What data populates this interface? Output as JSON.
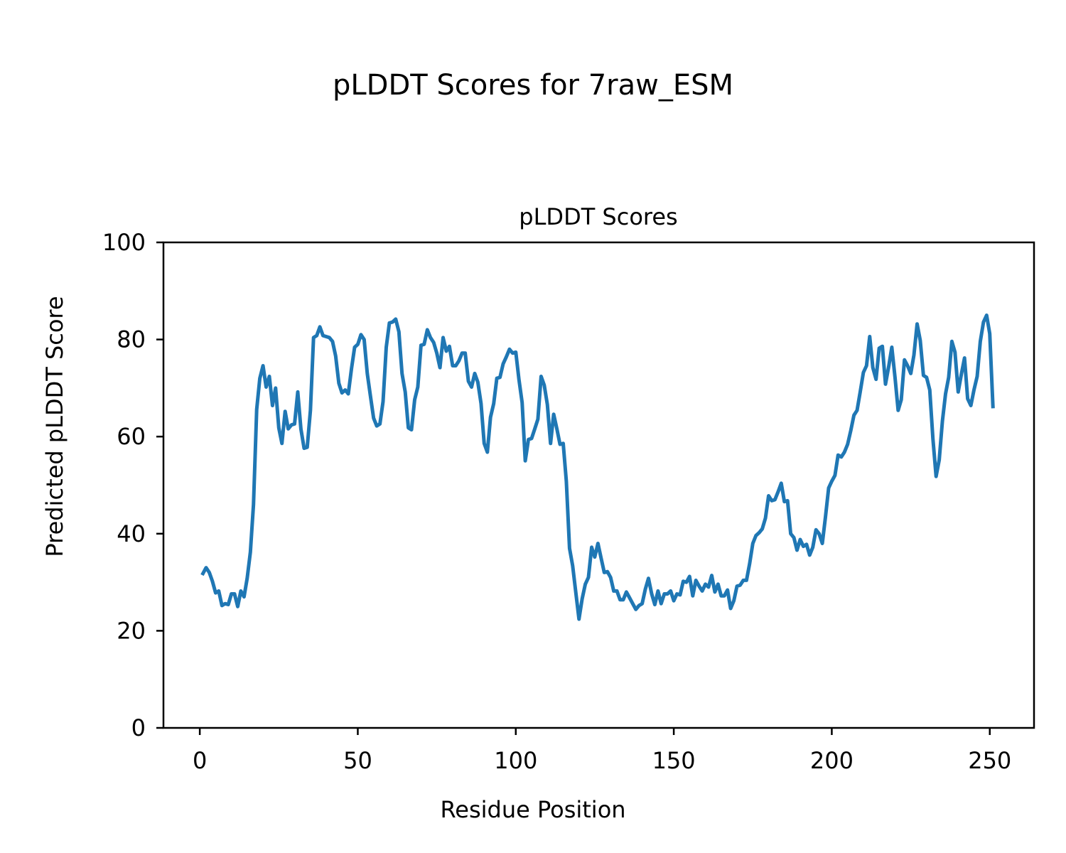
{
  "figure_title": "pLDDT Scores for 7raw_ESM",
  "chart_data": {
    "type": "line",
    "title": "pLDDT Scores",
    "xlabel": "Residue Position",
    "ylabel": "Predicted pLDDT Score",
    "xlim": [
      -11.5,
      264
    ],
    "ylim": [
      0,
      100
    ],
    "xticks": [
      0,
      50,
      100,
      150,
      200,
      250
    ],
    "yticks": [
      0,
      20,
      40,
      60,
      80,
      100
    ],
    "grid": false,
    "series": [
      {
        "color": "#1f77b4",
        "x": [
          1,
          2,
          3,
          4,
          5,
          6,
          7,
          8,
          9,
          10,
          11,
          12,
          13,
          14,
          15,
          16,
          17,
          18,
          19,
          20,
          21,
          22,
          23,
          24,
          25,
          26,
          27,
          28,
          29,
          30,
          31,
          32,
          33,
          34,
          35,
          36,
          37,
          38,
          39,
          40,
          41,
          42,
          43,
          44,
          45,
          46,
          47,
          48,
          49,
          50,
          51,
          52,
          53,
          54,
          55,
          56,
          57,
          58,
          59,
          60,
          61,
          62,
          63,
          64,
          65,
          66,
          67,
          68,
          69,
          70,
          71,
          72,
          73,
          74,
          75,
          76,
          77,
          78,
          79,
          80,
          81,
          82,
          83,
          84,
          85,
          86,
          87,
          88,
          89,
          90,
          91,
          92,
          93,
          94,
          95,
          96,
          97,
          98,
          99,
          100,
          101,
          102,
          103,
          104,
          105,
          106,
          107,
          108,
          109,
          110,
          111,
          112,
          113,
          114,
          115,
          116,
          117,
          118,
          119,
          120,
          121,
          122,
          123,
          124,
          125,
          126,
          127,
          128,
          129,
          130,
          131,
          132,
          133,
          134,
          135,
          136,
          137,
          138,
          139,
          140,
          141,
          142,
          143,
          144,
          145,
          146,
          147,
          148,
          149,
          150,
          151,
          152,
          153,
          154,
          155,
          156,
          157,
          158,
          159,
          160,
          161,
          162,
          163,
          164,
          165,
          166,
          167,
          168,
          169,
          170,
          171,
          172,
          173,
          174,
          175,
          176,
          177,
          178,
          179,
          180,
          181,
          182,
          183,
          184,
          185,
          186,
          187,
          188,
          189,
          190,
          191,
          192,
          193,
          194,
          195,
          196,
          197,
          198,
          199,
          200,
          201,
          202,
          203,
          204,
          205,
          206,
          207,
          208,
          209,
          210,
          211,
          212,
          213,
          214,
          215,
          216,
          217,
          218,
          219,
          220,
          221,
          222,
          223,
          224,
          225,
          226,
          227,
          228,
          229,
          230,
          231,
          232,
          233,
          234,
          235,
          236,
          237,
          238,
          239,
          240,
          241,
          242,
          243,
          244,
          245,
          246,
          247,
          248,
          249,
          250,
          251
        ],
        "y": [
          31.8,
          33.0,
          32.0,
          30.2,
          27.8,
          28.2,
          25.2,
          25.6,
          25.4,
          27.6,
          27.6,
          25.0,
          28.2,
          27.0,
          30.8,
          36.2,
          46.0,
          65.6,
          72.0,
          74.6,
          70.2,
          72.4,
          66.4,
          70.0,
          61.8,
          58.6,
          65.2,
          61.6,
          62.4,
          62.6,
          69.2,
          61.6,
          57.6,
          57.8,
          65.4,
          80.4,
          80.8,
          82.6,
          80.8,
          80.6,
          80.4,
          79.6,
          76.6,
          71.0,
          69.0,
          69.6,
          68.8,
          74.0,
          78.4,
          79.0,
          81.0,
          80.0,
          73.0,
          68.4,
          63.8,
          62.2,
          62.6,
          67.2,
          78.4,
          83.4,
          83.6,
          84.2,
          81.6,
          73.0,
          69.2,
          61.8,
          61.4,
          67.6,
          70.2,
          78.8,
          79.0,
          82.0,
          80.4,
          79.4,
          77.2,
          74.2,
          80.4,
          77.6,
          78.6,
          74.6,
          74.6,
          75.6,
          77.2,
          77.2,
          71.4,
          70.2,
          73.0,
          71.2,
          66.8,
          58.6,
          56.8,
          64.0,
          66.8,
          72.0,
          72.2,
          75.0,
          76.4,
          78.0,
          77.2,
          77.4,
          71.8,
          67.0,
          55.0,
          59.4,
          59.6,
          61.6,
          63.6,
          72.4,
          70.6,
          66.6,
          58.6,
          64.6,
          61.6,
          58.4,
          58.6,
          50.8,
          37.0,
          33.4,
          27.8,
          22.4,
          26.6,
          29.6,
          31.0,
          37.2,
          35.2,
          38.0,
          35.0,
          32.0,
          32.2,
          31.0,
          28.2,
          28.2,
          26.4,
          26.4,
          28.0,
          26.8,
          25.6,
          24.4,
          25.2,
          25.6,
          28.6,
          30.8,
          27.6,
          25.4,
          28.2,
          25.6,
          27.6,
          27.6,
          28.2,
          26.2,
          27.6,
          27.4,
          30.2,
          30.0,
          31.2,
          27.2,
          30.4,
          29.2,
          28.2,
          29.6,
          29.0,
          31.4,
          28.0,
          29.6,
          27.2,
          27.2,
          28.4,
          24.6,
          26.2,
          29.2,
          29.4,
          30.4,
          30.4,
          33.8,
          38.0,
          39.6,
          40.2,
          41.0,
          43.2,
          47.8,
          46.8,
          47.0,
          48.6,
          50.4,
          46.6,
          46.8,
          40.0,
          39.2,
          36.6,
          38.8,
          37.4,
          37.8,
          35.6,
          37.2,
          40.8,
          40.0,
          38.0,
          43.4,
          49.4,
          50.8,
          52.0,
          56.2,
          55.8,
          56.8,
          58.4,
          61.2,
          64.4,
          65.4,
          69.2,
          73.2,
          74.6,
          80.6,
          74.2,
          71.8,
          78.2,
          78.6,
          70.8,
          74.4,
          78.4,
          72.2,
          65.4,
          67.6,
          75.8,
          74.6,
          73.0,
          76.8,
          83.2,
          79.8,
          72.6,
          72.2,
          69.6,
          59.6,
          51.8,
          55.2,
          63.2,
          68.8,
          72.2,
          79.6,
          77.4,
          69.2,
          72.8,
          76.2,
          67.8,
          66.4,
          69.6,
          72.4,
          79.6,
          83.6,
          85.0,
          81.2,
          66.2
        ]
      }
    ]
  }
}
